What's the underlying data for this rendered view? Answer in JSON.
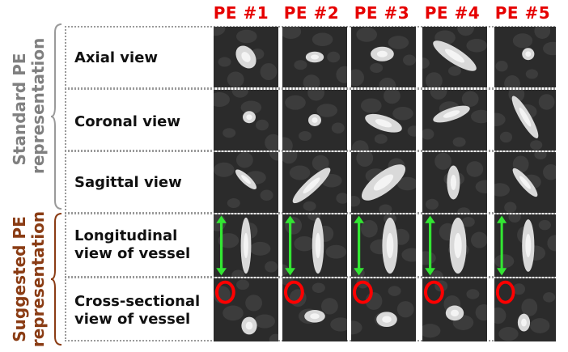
{
  "figure": {
    "columns": [
      "PE #1",
      "PE #2",
      "PE #3",
      "PE #4",
      "PE #5"
    ],
    "groups": {
      "standard": [
        "Standard PE",
        "representation"
      ],
      "suggested": [
        "Suggested PE",
        "representation"
      ]
    },
    "rows": [
      {
        "label_lines": [
          "Axial view"
        ]
      },
      {
        "label_lines": [
          "Coronal view"
        ]
      },
      {
        "label_lines": [
          "Sagittal view"
        ]
      },
      {
        "label_lines": [
          "Longitudinal",
          "view of vessel"
        ]
      },
      {
        "label_lines": [
          "Cross-sectional",
          "view of vessel"
        ]
      }
    ],
    "colors": {
      "header_red": "#e60000",
      "standard_gray": "#808080",
      "suggested_brown": "#8a3c14",
      "arrow_green": "#33e633",
      "circle_red": "#ff0000"
    }
  }
}
